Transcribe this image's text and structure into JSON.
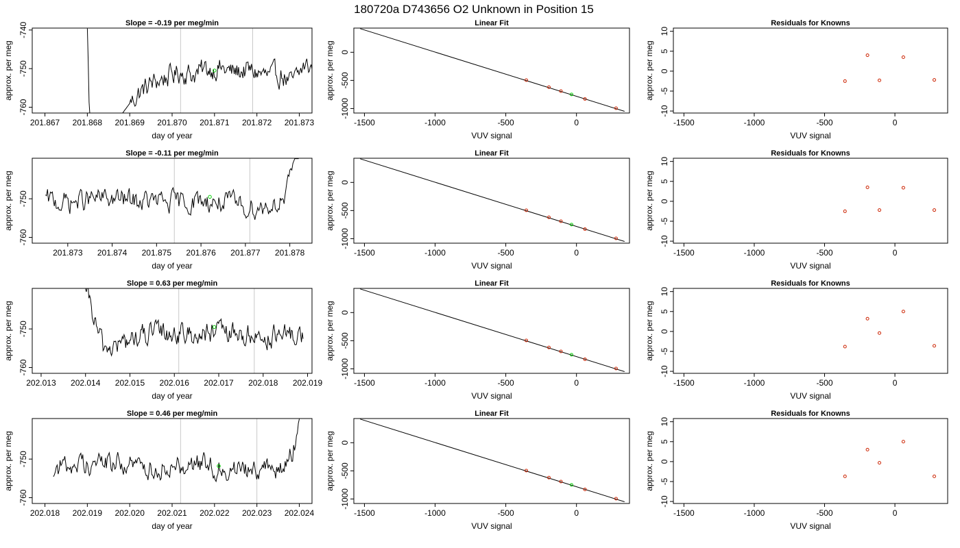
{
  "page_title": "180720a     D743656   O2 Unknown in Position  15",
  "colors": {
    "trace": "#000000",
    "unknown": "#00cc00",
    "known": "#cc2200",
    "vline": "#c8c8c8"
  },
  "chart_data": [
    {
      "type": "line",
      "panel": "timeseries",
      "row": 0,
      "title": "Slope =  -0.19  per meg/min",
      "xlabel": "day of year",
      "ylabel": "approx. per meg",
      "xlim": [
        201.8667,
        201.8733
      ],
      "ylim": [
        -761.5,
        -739.5
      ],
      "xticks": [
        201.867,
        201.868,
        201.869,
        201.87,
        201.871,
        201.872,
        201.873
      ],
      "xtick_labels": [
        "201.867",
        "201.868",
        "201.869",
        "201.870",
        "201.871",
        "201.872",
        "201.873"
      ],
      "yticks": [
        -740,
        -750,
        -760
      ],
      "ytick_labels": [
        "-740",
        "-750",
        "-760"
      ],
      "vlines": [
        201.8702,
        201.8719
      ],
      "unknown_point": {
        "x": 201.871,
        "y": -750.5
      },
      "trace_x": [
        201.868,
        201.8733
      ],
      "trace_anchors": [
        [
          201.868,
          -739.6
        ],
        [
          201.86805,
          -762
        ],
        [
          201.8688,
          -762
        ],
        [
          201.869,
          -759
        ],
        [
          201.8692,
          -756.5
        ],
        [
          201.8695,
          -754
        ],
        [
          201.8698,
          -752.5
        ],
        [
          201.8702,
          -750.8
        ],
        [
          201.8705,
          -751.5
        ],
        [
          201.8708,
          -750.2
        ],
        [
          201.8711,
          -749.8
        ],
        [
          201.8714,
          -751
        ],
        [
          201.8717,
          -750.5
        ],
        [
          201.872,
          -751
        ],
        [
          201.8723,
          -752.2
        ],
        [
          201.8726,
          -751.5
        ],
        [
          201.8728,
          -754
        ],
        [
          201.873,
          -751.5
        ],
        [
          201.8731,
          -749.5
        ]
      ]
    },
    {
      "type": "scatter",
      "panel": "linear_fit",
      "row": 0,
      "title": "Linear Fit",
      "xlabel": "VUV signal",
      "ylabel": "approx. per meg",
      "xlim": [
        -1575,
        375
      ],
      "ylim": [
        -1080,
        430
      ],
      "xticks": [
        -1500,
        -1000,
        -500,
        0
      ],
      "xtick_labels": [
        "-1500",
        "-1000",
        "-500",
        "0"
      ],
      "yticks": [
        0,
        -500,
        -1000
      ],
      "ytick_labels": [
        "0",
        "-500",
        "-1000"
      ],
      "fit_line": {
        "x": [
          -1530,
          340
        ],
        "y": [
          420,
          -1050
        ]
      },
      "knowns": [
        {
          "x": -355,
          "y": -495
        },
        {
          "x": -195,
          "y": -620
        },
        {
          "x": -110,
          "y": -690
        },
        {
          "x": 60,
          "y": -830
        },
        {
          "x": 280,
          "y": -995
        }
      ],
      "unknown": {
        "x": -35,
        "y": -750
      }
    },
    {
      "type": "scatter",
      "panel": "residuals",
      "row": 0,
      "title": "Residuals for Knowns",
      "xlabel": "VUV signal",
      "ylabel": "approx. per meg",
      "xlim": [
        -1575,
        375
      ],
      "ylim": [
        -10.5,
        10.8
      ],
      "xticks": [
        -1500,
        -1000,
        -500,
        0
      ],
      "xtick_labels": [
        "-1500",
        "-1000",
        "-500",
        "0"
      ],
      "yticks": [
        10,
        5,
        0,
        -5,
        -10
      ],
      "ytick_labels": [
        "10",
        "5",
        "0",
        "-5",
        "-10"
      ],
      "points": [
        {
          "x": -355,
          "y": -2.5
        },
        {
          "x": -195,
          "y": 4
        },
        {
          "x": -110,
          "y": -2.3
        },
        {
          "x": 60,
          "y": 3.5
        },
        {
          "x": 280,
          "y": -2.2
        }
      ]
    },
    {
      "type": "line",
      "panel": "timeseries",
      "row": 1,
      "title": "Slope =  -0.11  per meg/min",
      "xlabel": "day of year",
      "ylabel": "approx. per meg",
      "xlim": [
        201.8722,
        201.8785
      ],
      "ylim": [
        -761.5,
        -739.5
      ],
      "xticks": [
        201.873,
        201.874,
        201.875,
        201.876,
        201.877,
        201.878
      ],
      "xtick_labels": [
        "201.873",
        "201.874",
        "201.875",
        "201.876",
        "201.877",
        "201.878"
      ],
      "yticks": [
        -750,
        -760
      ],
      "ytick_labels": [
        "-750",
        "-760"
      ],
      "vlines": [
        201.8754,
        201.8771
      ],
      "unknown_point": {
        "x": 201.8762,
        "y": -749.5
      },
      "trace_x": [
        201.8725,
        201.8782
      ],
      "trace_anchors": [
        [
          201.8725,
          -750.5
        ],
        [
          201.873,
          -751
        ],
        [
          201.8735,
          -750.2
        ],
        [
          201.874,
          -750
        ],
        [
          201.8745,
          -750.5
        ],
        [
          201.875,
          -750.8
        ],
        [
          201.8755,
          -751
        ],
        [
          201.876,
          -750.5
        ],
        [
          201.8765,
          -751
        ],
        [
          201.877,
          -752
        ],
        [
          201.8774,
          -752.2
        ],
        [
          201.8777,
          -751
        ],
        [
          201.8779,
          -750.2
        ],
        [
          201.878,
          -746
        ],
        [
          201.8781,
          -739.6
        ]
      ]
    },
    {
      "type": "scatter",
      "panel": "linear_fit",
      "row": 1,
      "title": "Linear Fit",
      "xlabel": "VUV signal",
      "ylabel": "approx. per meg",
      "xlim": [
        -1575,
        375
      ],
      "ylim": [
        -1080,
        430
      ],
      "xticks": [
        -1500,
        -1000,
        -500,
        0
      ],
      "xtick_labels": [
        "-1500",
        "-1000",
        "-500",
        "0"
      ],
      "yticks": [
        0,
        -500,
        -1000
      ],
      "ytick_labels": [
        "0",
        "-500",
        "-1000"
      ],
      "fit_line": {
        "x": [
          -1530,
          340
        ],
        "y": [
          420,
          -1050
        ]
      },
      "knowns": [
        {
          "x": -355,
          "y": -495
        },
        {
          "x": -195,
          "y": -620
        },
        {
          "x": -110,
          "y": -690
        },
        {
          "x": 60,
          "y": -830
        },
        {
          "x": 280,
          "y": -995
        }
      ],
      "unknown": {
        "x": -35,
        "y": -750
      }
    },
    {
      "type": "scatter",
      "panel": "residuals",
      "row": 1,
      "title": "Residuals for Knowns",
      "xlabel": "VUV signal",
      "ylabel": "approx. per meg",
      "xlim": [
        -1575,
        375
      ],
      "ylim": [
        -10.5,
        10.8
      ],
      "xticks": [
        -1500,
        -1000,
        -500,
        0
      ],
      "xtick_labels": [
        "-1500",
        "-1000",
        "-500",
        "0"
      ],
      "yticks": [
        10,
        5,
        0,
        -5,
        -10
      ],
      "ytick_labels": [
        "10",
        "5",
        "0",
        "-5",
        "-10"
      ],
      "points": [
        {
          "x": -355,
          "y": -2.5
        },
        {
          "x": -195,
          "y": 3.5
        },
        {
          "x": -110,
          "y": -2.2
        },
        {
          "x": 60,
          "y": 3.4
        },
        {
          "x": 280,
          "y": -2.2
        }
      ]
    },
    {
      "type": "line",
      "panel": "timeseries",
      "row": 2,
      "title": "Slope =  0.63  per meg/min",
      "xlabel": "day of year",
      "ylabel": "approx. per meg",
      "xlim": [
        202.0128,
        202.0191
      ],
      "ylim": [
        -761.5,
        -739.5
      ],
      "xticks": [
        202.013,
        202.014,
        202.015,
        202.016,
        202.017,
        202.018,
        202.019
      ],
      "xtick_labels": [
        "202.013",
        "202.014",
        "202.015",
        "202.016",
        "202.017",
        "202.018",
        "202.019"
      ],
      "yticks": [
        -750,
        -760
      ],
      "ytick_labels": [
        "-750",
        "-760"
      ],
      "vlines": [
        202.0161,
        202.0178
      ],
      "unknown_point": {
        "x": 202.0169,
        "y": -749.5
      },
      "trace_x": [
        202.014,
        202.0189
      ],
      "trace_anchors": [
        [
          202.014,
          -739.6
        ],
        [
          202.0142,
          -748
        ],
        [
          202.0144,
          -755
        ],
        [
          202.0148,
          -754
        ],
        [
          202.0152,
          -752
        ],
        [
          202.0156,
          -751
        ],
        [
          202.016,
          -751
        ],
        [
          202.0165,
          -751.5
        ],
        [
          202.017,
          -751
        ],
        [
          202.0175,
          -751.5
        ],
        [
          202.018,
          -752
        ],
        [
          202.0185,
          -752
        ],
        [
          202.0189,
          -751.5
        ]
      ]
    },
    {
      "type": "scatter",
      "panel": "linear_fit",
      "row": 2,
      "title": "Linear Fit",
      "xlabel": "VUV signal",
      "ylabel": "approx. per meg",
      "xlim": [
        -1575,
        375
      ],
      "ylim": [
        -1080,
        430
      ],
      "xticks": [
        -1500,
        -1000,
        -500,
        0
      ],
      "xtick_labels": [
        "-1500",
        "-1000",
        "-500",
        "0"
      ],
      "yticks": [
        0,
        -500,
        -1000
      ],
      "ytick_labels": [
        "0",
        "-500",
        "-1000"
      ],
      "fit_line": {
        "x": [
          -1530,
          340
        ],
        "y": [
          420,
          -1050
        ]
      },
      "knowns": [
        {
          "x": -355,
          "y": -495
        },
        {
          "x": -195,
          "y": -620
        },
        {
          "x": -110,
          "y": -690
        },
        {
          "x": 60,
          "y": -830
        },
        {
          "x": 280,
          "y": -995
        }
      ],
      "unknown": {
        "x": -35,
        "y": -750
      }
    },
    {
      "type": "scatter",
      "panel": "residuals",
      "row": 2,
      "title": "Residuals for Knowns",
      "xlabel": "VUV signal",
      "ylabel": "approx. per meg",
      "xlim": [
        -1575,
        375
      ],
      "ylim": [
        -10.5,
        10.8
      ],
      "xticks": [
        -1500,
        -1000,
        -500,
        0
      ],
      "xtick_labels": [
        "-1500",
        "-1000",
        "-500",
        "0"
      ],
      "yticks": [
        10,
        5,
        0,
        -5,
        -10
      ],
      "ytick_labels": [
        "10",
        "5",
        "0",
        "-5",
        "-10"
      ],
      "points": [
        {
          "x": -355,
          "y": -3.8
        },
        {
          "x": -195,
          "y": 3.2
        },
        {
          "x": -110,
          "y": -0.4
        },
        {
          "x": 60,
          "y": 5
        },
        {
          "x": 280,
          "y": -3.6
        }
      ]
    },
    {
      "type": "line",
      "panel": "timeseries",
      "row": 3,
      "title": "Slope =  0.46  per meg/min",
      "xlabel": "day of year",
      "ylabel": "approx. per meg",
      "xlim": [
        202.0177,
        202.0243
      ],
      "ylim": [
        -761.5,
        -739.5
      ],
      "xticks": [
        202.018,
        202.019,
        202.02,
        202.021,
        202.022,
        202.023,
        202.024
      ],
      "xtick_labels": [
        "202.018",
        "202.019",
        "202.020",
        "202.021",
        "202.022",
        "202.023",
        "202.024"
      ],
      "yticks": [
        -750,
        -760
      ],
      "ytick_labels": [
        "-750",
        "-760"
      ],
      "vlines": [
        202.0212,
        202.023
      ],
      "unknown_point": {
        "x": 202.0221,
        "y": -751.8
      },
      "trace_x": [
        202.0182,
        202.024
      ],
      "trace_anchors": [
        [
          202.0182,
          -752.5
        ],
        [
          202.0186,
          -751.5
        ],
        [
          202.019,
          -751
        ],
        [
          202.0195,
          -750.8
        ],
        [
          202.02,
          -751.5
        ],
        [
          202.0205,
          -752.5
        ],
        [
          202.021,
          -751.5
        ],
        [
          202.0215,
          -751
        ],
        [
          202.022,
          -752
        ],
        [
          202.0225,
          -752.5
        ],
        [
          202.023,
          -752
        ],
        [
          202.0234,
          -753
        ],
        [
          202.0237,
          -752
        ],
        [
          202.0239,
          -746
        ],
        [
          202.024,
          -739.6
        ]
      ]
    },
    {
      "type": "scatter",
      "panel": "linear_fit",
      "row": 3,
      "title": "Linear Fit",
      "xlabel": "VUV signal",
      "ylabel": "approx. per meg",
      "xlim": [
        -1575,
        375
      ],
      "ylim": [
        -1080,
        430
      ],
      "xticks": [
        -1500,
        -1000,
        -500,
        0
      ],
      "xtick_labels": [
        "-1500",
        "-1000",
        "-500",
        "0"
      ],
      "yticks": [
        0,
        -500,
        -1000
      ],
      "ytick_labels": [
        "0",
        "-500",
        "-1000"
      ],
      "fit_line": {
        "x": [
          -1530,
          340
        ],
        "y": [
          420,
          -1050
        ]
      },
      "knowns": [
        {
          "x": -355,
          "y": -495
        },
        {
          "x": -195,
          "y": -620
        },
        {
          "x": -110,
          "y": -690
        },
        {
          "x": 60,
          "y": -830
        },
        {
          "x": 280,
          "y": -995
        }
      ],
      "unknown": {
        "x": -35,
        "y": -750
      }
    },
    {
      "type": "scatter",
      "panel": "residuals",
      "row": 3,
      "title": "Residuals for Knowns",
      "xlabel": "VUV signal",
      "ylabel": "approx. per meg",
      "xlim": [
        -1575,
        375
      ],
      "ylim": [
        -10.5,
        10.8
      ],
      "xticks": [
        -1500,
        -1000,
        -500,
        0
      ],
      "xtick_labels": [
        "-1500",
        "-1000",
        "-500",
        "0"
      ],
      "yticks": [
        10,
        5,
        0,
        -5,
        -10
      ],
      "ytick_labels": [
        "10",
        "5",
        "0",
        "-5",
        "-10"
      ],
      "points": [
        {
          "x": -355,
          "y": -3.7
        },
        {
          "x": -195,
          "y": 3
        },
        {
          "x": -110,
          "y": -0.3
        },
        {
          "x": 60,
          "y": 5
        },
        {
          "x": 280,
          "y": -3.7
        }
      ]
    }
  ]
}
